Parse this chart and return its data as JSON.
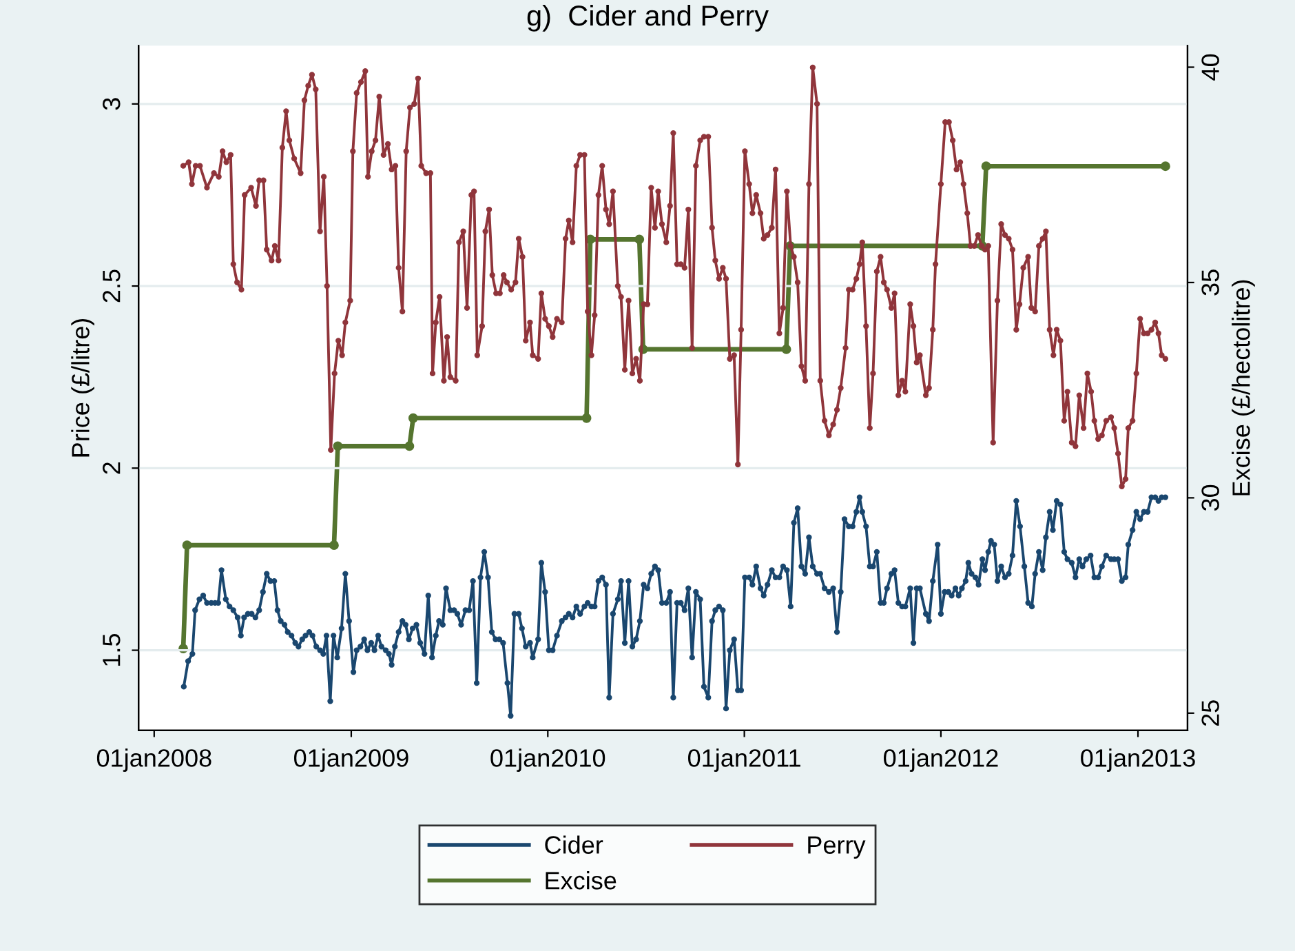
{
  "chart_data": {
    "type": "line",
    "title": "g)  Cider and Perry",
    "ylabel": "Price (£/litre)",
    "y2label": "Excise (£/hectolitre)",
    "xlim": [
      "2007-12-03",
      "2013-04-03"
    ],
    "xticks": [
      {
        "value": "2008-01-01",
        "label": "01jan2008"
      },
      {
        "value": "2009-01-01",
        "label": "01jan2009"
      },
      {
        "value": "2010-01-01",
        "label": "01jan2010"
      },
      {
        "value": "2011-01-01",
        "label": "01jan2011"
      },
      {
        "value": "2012-01-01",
        "label": "01jan2012"
      },
      {
        "value": "2013-01-01",
        "label": "01jan2013"
      }
    ],
    "ylim": [
      1.28,
      3.16
    ],
    "yticks": [
      1.5,
      2,
      2.5,
      3
    ],
    "y2lim": [
      24.6,
      40.5
    ],
    "y2ticks": [
      25,
      30,
      35,
      40
    ],
    "grid": "y",
    "legend": "bottom",
    "marker": "circle",
    "line_style": "solid",
    "series": [
      {
        "name": "Cider",
        "color": "#1a476f",
        "x": [
          "2008-02-25",
          "2008-03-04",
          "2008-03-12",
          "2008-03-17",
          "2008-03-25",
          "2008-04-01",
          "2008-04-08",
          "2008-04-16",
          "2008-04-23",
          "2008-04-29",
          "2008-05-05",
          "2008-05-13",
          "2008-05-20",
          "2008-05-27",
          "2008-06-04",
          "2008-06-10",
          "2008-06-16",
          "2008-06-23",
          "2008-06-30",
          "2008-07-07",
          "2008-07-14",
          "2008-07-21",
          "2008-07-28",
          "2008-08-04",
          "2008-08-11",
          "2008-08-17",
          "2008-08-23",
          "2008-08-30",
          "2008-09-05",
          "2008-09-12",
          "2008-09-19",
          "2008-09-25",
          "2008-10-02",
          "2008-10-08",
          "2008-10-15",
          "2008-10-21",
          "2008-10-28",
          "2008-11-04",
          "2008-11-10",
          "2008-11-16",
          "2008-11-23",
          "2008-11-29",
          "2008-12-06",
          "2008-12-14",
          "2008-12-21",
          "2008-12-28",
          "2009-01-05",
          "2009-01-11",
          "2009-01-18",
          "2009-01-25",
          "2009-01-31",
          "2009-02-07",
          "2009-02-13",
          "2009-02-20",
          "2009-02-26",
          "2009-03-06",
          "2009-03-12",
          "2009-03-17",
          "2009-03-23",
          "2009-03-30",
          "2009-04-06",
          "2009-04-12",
          "2009-04-18",
          "2009-04-25",
          "2009-05-02",
          "2009-05-09",
          "2009-05-17",
          "2009-05-24",
          "2009-05-31",
          "2009-06-07",
          "2009-06-13",
          "2009-06-20",
          "2009-06-26",
          "2009-07-04",
          "2009-07-11",
          "2009-07-17",
          "2009-07-24",
          "2009-08-01",
          "2009-08-08",
          "2009-08-15",
          "2009-08-22",
          "2009-08-29",
          "2009-09-05",
          "2009-09-12",
          "2009-09-19",
          "2009-09-26",
          "2009-10-03",
          "2009-10-10",
          "2009-10-18",
          "2009-10-24",
          "2009-10-31",
          "2009-11-08",
          "2009-11-14",
          "2009-11-21",
          "2009-11-29",
          "2009-12-04",
          "2009-12-14",
          "2009-12-20",
          "2009-12-27",
          "2010-01-03",
          "2010-01-10",
          "2010-01-18",
          "2010-01-27",
          "2010-02-03",
          "2010-02-09",
          "2010-02-16",
          "2010-02-23",
          "2010-03-02",
          "2010-03-10",
          "2010-03-16",
          "2010-03-23",
          "2010-03-29",
          "2010-04-05",
          "2010-04-12",
          "2010-04-19",
          "2010-04-25",
          "2010-05-02",
          "2010-05-11",
          "2010-05-17",
          "2010-05-24",
          "2010-05-31",
          "2010-06-07",
          "2010-06-14",
          "2010-06-21",
          "2010-06-28",
          "2010-07-05",
          "2010-07-12",
          "2010-07-19",
          "2010-07-25",
          "2010-08-01",
          "2010-08-09",
          "2010-08-16",
          "2010-08-22",
          "2010-08-29",
          "2010-09-05",
          "2010-09-12",
          "2010-09-19",
          "2010-09-26",
          "2010-10-03",
          "2010-10-11",
          "2010-10-18",
          "2010-10-26",
          "2010-11-02",
          "2010-11-08",
          "2010-11-15",
          "2010-11-22",
          "2010-11-28",
          "2010-12-05",
          "2010-12-13",
          "2010-12-20",
          "2010-12-26",
          "2011-01-02",
          "2011-01-10",
          "2011-01-16",
          "2011-01-23",
          "2011-01-31",
          "2011-02-06",
          "2011-02-13",
          "2011-02-21",
          "2011-02-28",
          "2011-03-07",
          "2011-03-14",
          "2011-03-21",
          "2011-03-28",
          "2011-04-03",
          "2011-04-10",
          "2011-04-17",
          "2011-04-24",
          "2011-05-01",
          "2011-05-08",
          "2011-05-16",
          "2011-05-22",
          "2011-05-30",
          "2011-06-07",
          "2011-06-15",
          "2011-06-22",
          "2011-06-29",
          "2011-07-06",
          "2011-07-14",
          "2011-07-21",
          "2011-07-28",
          "2011-08-03",
          "2011-08-08",
          "2011-08-15",
          "2011-08-22",
          "2011-08-28",
          "2011-09-04",
          "2011-09-11",
          "2011-09-17",
          "2011-09-23",
          "2011-10-01",
          "2011-10-07",
          "2011-10-14",
          "2011-10-21",
          "2011-10-27",
          "2011-11-05",
          "2011-11-11",
          "2011-11-17",
          "2011-11-23",
          "2011-12-04",
          "2011-12-10",
          "2011-12-17",
          "2011-12-26",
          "2012-01-01",
          "2012-01-08",
          "2012-01-15",
          "2012-01-21",
          "2012-01-28",
          "2012-02-03",
          "2012-02-09",
          "2012-02-16",
          "2012-02-21",
          "2012-02-27",
          "2012-03-05",
          "2012-03-11",
          "2012-03-18",
          "2012-03-23",
          "2012-03-29",
          "2012-04-03",
          "2012-04-09",
          "2012-04-15",
          "2012-04-22",
          "2012-04-29",
          "2012-05-06",
          "2012-05-13",
          "2012-05-20",
          "2012-05-27",
          "2012-06-04",
          "2012-06-11",
          "2012-06-18",
          "2012-06-24",
          "2012-07-01",
          "2012-07-08",
          "2012-07-14",
          "2012-07-21",
          "2012-07-27",
          "2012-08-03",
          "2012-08-10",
          "2012-08-17",
          "2012-08-23",
          "2012-08-31",
          "2012-09-07",
          "2012-09-14",
          "2012-09-20",
          "2012-09-27",
          "2012-10-05",
          "2012-10-12",
          "2012-10-19",
          "2012-10-26",
          "2012-11-03",
          "2012-11-12",
          "2012-11-18",
          "2012-11-25",
          "2012-12-02",
          "2012-12-09",
          "2012-12-14",
          "2012-12-22",
          "2012-12-29",
          "2013-01-05",
          "2013-01-12",
          "2013-01-19",
          "2013-01-26",
          "2013-02-02",
          "2013-02-08",
          "2013-02-14",
          "2013-02-21"
        ],
        "values": [
          1.4,
          1.47,
          1.49,
          1.61,
          1.64,
          1.65,
          1.63,
          1.63,
          1.63,
          1.63,
          1.72,
          1.64,
          1.62,
          1.61,
          1.59,
          1.54,
          1.59,
          1.6,
          1.6,
          1.59,
          1.61,
          1.66,
          1.71,
          1.69,
          1.69,
          1.61,
          1.58,
          1.57,
          1.55,
          1.54,
          1.52,
          1.51,
          1.53,
          1.54,
          1.55,
          1.54,
          1.51,
          1.5,
          1.49,
          1.54,
          1.36,
          1.54,
          1.48,
          1.56,
          1.71,
          1.58,
          1.44,
          1.5,
          1.51,
          1.53,
          1.5,
          1.52,
          1.5,
          1.54,
          1.51,
          1.5,
          1.49,
          1.46,
          1.51,
          1.55,
          1.58,
          1.57,
          1.53,
          1.56,
          1.57,
          1.52,
          1.49,
          1.65,
          1.48,
          1.54,
          1.58,
          1.57,
          1.67,
          1.61,
          1.61,
          1.6,
          1.57,
          1.61,
          1.61,
          1.69,
          1.41,
          1.7,
          1.77,
          1.7,
          1.55,
          1.53,
          1.53,
          1.52,
          1.41,
          1.32,
          1.6,
          1.6,
          1.56,
          1.51,
          1.52,
          1.48,
          1.53,
          1.74,
          1.66,
          1.5,
          1.5,
          1.54,
          1.58,
          1.59,
          1.6,
          1.59,
          1.62,
          1.6,
          1.62,
          1.63,
          1.62,
          1.62,
          1.69,
          1.7,
          1.68,
          1.37,
          1.6,
          1.64,
          1.69,
          1.52,
          1.69,
          1.51,
          1.53,
          1.58,
          1.68,
          1.67,
          1.71,
          1.73,
          1.72,
          1.63,
          1.63,
          1.66,
          1.37,
          1.63,
          1.63,
          1.61,
          1.67,
          1.48,
          1.66,
          1.64,
          1.4,
          1.37,
          1.58,
          1.61,
          1.62,
          1.61,
          1.34,
          1.5,
          1.53,
          1.39,
          1.39,
          1.7,
          1.7,
          1.68,
          1.73,
          1.67,
          1.65,
          1.68,
          1.72,
          1.7,
          1.7,
          1.73,
          1.72,
          1.62,
          1.85,
          1.89,
          1.73,
          1.71,
          1.81,
          1.73,
          1.71,
          1.71,
          1.67,
          1.66,
          1.67,
          1.55,
          1.66,
          1.86,
          1.84,
          1.84,
          1.88,
          1.92,
          1.88,
          1.84,
          1.73,
          1.73,
          1.77,
          1.63,
          1.63,
          1.67,
          1.71,
          1.72,
          1.63,
          1.62,
          1.62,
          1.67,
          1.52,
          1.67,
          1.67,
          1.6,
          1.58,
          1.69,
          1.79,
          1.6,
          1.66,
          1.66,
          1.65,
          1.67,
          1.65,
          1.67,
          1.69,
          1.74,
          1.71,
          1.7,
          1.68,
          1.75,
          1.72,
          1.77,
          1.8,
          1.79,
          1.69,
          1.73,
          1.7,
          1.71,
          1.76,
          1.91,
          1.84,
          1.73,
          1.63,
          1.62,
          1.71,
          1.77,
          1.72,
          1.81,
          1.88,
          1.83,
          1.91,
          1.9,
          1.77,
          1.75,
          1.74,
          1.7,
          1.75,
          1.73,
          1.75,
          1.76,
          1.7,
          1.7,
          1.73,
          1.76,
          1.75,
          1.75,
          1.75,
          1.69,
          1.7,
          1.79,
          1.83,
          1.88,
          1.86,
          1.88,
          1.88,
          1.92,
          1.92,
          1.91,
          1.92,
          1.92
        ]
      },
      {
        "name": "Perry",
        "color": "#90353b",
        "x": [
          "2008-02-24",
          "2008-03-05",
          "2008-03-11",
          "2008-03-18",
          "2008-03-26",
          "2008-04-08",
          "2008-04-21",
          "2008-04-30",
          "2008-05-07",
          "2008-05-14",
          "2008-05-22",
          "2008-05-27",
          "2008-06-03",
          "2008-06-11",
          "2008-06-17",
          "2008-06-29",
          "2008-07-08",
          "2008-07-14",
          "2008-07-22",
          "2008-07-28",
          "2008-08-06",
          "2008-08-12",
          "2008-08-19",
          "2008-08-26",
          "2008-09-02",
          "2008-09-08",
          "2008-09-17",
          "2008-09-29",
          "2008-10-06",
          "2008-10-13",
          "2008-10-20",
          "2008-10-27",
          "2008-11-04",
          "2008-11-11",
          "2008-11-17",
          "2008-11-24",
          "2008-12-01",
          "2008-12-08",
          "2008-12-15",
          "2008-12-21",
          "2008-12-30",
          "2009-01-04",
          "2009-01-11",
          "2009-01-19",
          "2009-01-27",
          "2009-02-01",
          "2009-02-08",
          "2009-02-15",
          "2009-02-22",
          "2009-03-02",
          "2009-03-10",
          "2009-03-17",
          "2009-03-24",
          "2009-03-30",
          "2009-04-06",
          "2009-04-13",
          "2009-04-20",
          "2009-04-28",
          "2009-05-05",
          "2009-05-11",
          "2009-05-20",
          "2009-05-28",
          "2009-06-01",
          "2009-06-07",
          "2009-06-14",
          "2009-06-22",
          "2009-06-28",
          "2009-07-04",
          "2009-07-14",
          "2009-07-20",
          "2009-07-28",
          "2009-08-04",
          "2009-08-12",
          "2009-08-17",
          "2009-08-23",
          "2009-09-01",
          "2009-09-07",
          "2009-09-14",
          "2009-09-20",
          "2009-09-27",
          "2009-10-04",
          "2009-10-11",
          "2009-10-17",
          "2009-10-25",
          "2009-11-02",
          "2009-11-08",
          "2009-11-15",
          "2009-11-21",
          "2009-11-29",
          "2009-12-04",
          "2009-12-14",
          "2009-12-20",
          "2009-12-27",
          "2010-01-03",
          "2010-01-10",
          "2010-01-18",
          "2010-01-27",
          "2010-02-03",
          "2010-02-09",
          "2010-02-16",
          "2010-02-23",
          "2010-03-02",
          "2010-03-10",
          "2010-03-16",
          "2010-03-23",
          "2010-03-29",
          "2010-04-05",
          "2010-04-12",
          "2010-04-19",
          "2010-04-25",
          "2010-05-02",
          "2010-05-11",
          "2010-05-17",
          "2010-05-24",
          "2010-05-31",
          "2010-06-07",
          "2010-06-14",
          "2010-06-21",
          "2010-06-28",
          "2010-07-05",
          "2010-07-12",
          "2010-07-19",
          "2010-07-25",
          "2010-08-01",
          "2010-08-09",
          "2010-08-16",
          "2010-08-22",
          "2010-08-29",
          "2010-09-05",
          "2010-09-12",
          "2010-09-19",
          "2010-09-26",
          "2010-10-03",
          "2010-10-11",
          "2010-10-18",
          "2010-10-26",
          "2010-11-02",
          "2010-11-08",
          "2010-11-15",
          "2010-11-22",
          "2010-11-28",
          "2010-12-05",
          "2010-12-13",
          "2010-12-20",
          "2010-12-26",
          "2011-01-02",
          "2011-01-10",
          "2011-01-16",
          "2011-01-23",
          "2011-01-31",
          "2011-02-06",
          "2011-02-13",
          "2011-02-21",
          "2011-02-28",
          "2011-03-07",
          "2011-03-14",
          "2011-03-21",
          "2011-03-28",
          "2011-04-03",
          "2011-04-10",
          "2011-04-17",
          "2011-04-24",
          "2011-05-01",
          "2011-05-08",
          "2011-05-16",
          "2011-05-22",
          "2011-05-30",
          "2011-06-07",
          "2011-06-15",
          "2011-06-22",
          "2011-06-29",
          "2011-07-08",
          "2011-07-14",
          "2011-07-21",
          "2011-07-28",
          "2011-08-03",
          "2011-08-08",
          "2011-08-15",
          "2011-08-22",
          "2011-08-28",
          "2011-09-04",
          "2011-09-11",
          "2011-09-17",
          "2011-09-23",
          "2011-10-01",
          "2011-10-07",
          "2011-10-14",
          "2011-10-21",
          "2011-10-27",
          "2011-11-05",
          "2011-11-11",
          "2011-11-17",
          "2011-11-23",
          "2011-12-04",
          "2011-12-10",
          "2011-12-17",
          "2011-12-22",
          "2012-01-01",
          "2012-01-09",
          "2012-01-16",
          "2012-01-23",
          "2012-01-30",
          "2012-02-06",
          "2012-02-12",
          "2012-02-19",
          "2012-02-25",
          "2012-03-03",
          "2012-03-10",
          "2012-03-17",
          "2012-03-23",
          "2012-03-29",
          "2012-04-07",
          "2012-04-15",
          "2012-04-22",
          "2012-04-29",
          "2012-05-06",
          "2012-05-13",
          "2012-05-20",
          "2012-05-26",
          "2012-06-02",
          "2012-06-11",
          "2012-06-17",
          "2012-06-24",
          "2012-07-01",
          "2012-07-08",
          "2012-07-14",
          "2012-07-21",
          "2012-07-28",
          "2012-08-03",
          "2012-08-10",
          "2012-08-17",
          "2012-08-23",
          "2012-08-31",
          "2012-09-07",
          "2012-09-14",
          "2012-09-22",
          "2012-09-29",
          "2012-10-06",
          "2012-10-12",
          "2012-10-19",
          "2012-10-26",
          "2012-11-03",
          "2012-11-12",
          "2012-11-18",
          "2012-11-25",
          "2012-12-02",
          "2012-12-09",
          "2012-12-14",
          "2012-12-22",
          "2012-12-29",
          "2013-01-05",
          "2013-01-12",
          "2013-01-19",
          "2013-01-26",
          "2013-02-02",
          "2013-02-08",
          "2013-02-14",
          "2013-02-21"
        ],
        "values": [
          2.83,
          2.84,
          2.78,
          2.83,
          2.83,
          2.77,
          2.81,
          2.8,
          2.87,
          2.84,
          2.86,
          2.56,
          2.51,
          2.49,
          2.75,
          2.77,
          2.72,
          2.79,
          2.79,
          2.6,
          2.57,
          2.61,
          2.57,
          2.88,
          2.98,
          2.9,
          2.85,
          2.81,
          3.01,
          3.05,
          3.08,
          3.04,
          2.65,
          2.8,
          2.5,
          2.05,
          2.26,
          2.35,
          2.31,
          2.4,
          2.46,
          2.87,
          3.03,
          3.06,
          3.09,
          2.8,
          2.87,
          2.9,
          3.02,
          2.86,
          2.89,
          2.82,
          2.83,
          2.55,
          2.43,
          2.87,
          2.99,
          3.0,
          3.07,
          2.83,
          2.81,
          2.81,
          2.26,
          2.4,
          2.47,
          2.24,
          2.36,
          2.25,
          2.24,
          2.62,
          2.65,
          2.44,
          2.75,
          2.76,
          2.31,
          2.39,
          2.65,
          2.71,
          2.53,
          2.48,
          2.48,
          2.53,
          2.51,
          2.49,
          2.51,
          2.63,
          2.58,
          2.35,
          2.4,
          2.31,
          2.3,
          2.48,
          2.41,
          2.39,
          2.36,
          2.41,
          2.4,
          2.63,
          2.68,
          2.62,
          2.83,
          2.86,
          2.86,
          2.43,
          2.31,
          2.42,
          2.75,
          2.83,
          2.71,
          2.67,
          2.76,
          2.5,
          2.47,
          2.27,
          2.46,
          2.26,
          2.3,
          2.24,
          2.45,
          2.45,
          2.77,
          2.66,
          2.76,
          2.67,
          2.62,
          2.72,
          2.92,
          2.56,
          2.56,
          2.55,
          2.71,
          2.33,
          2.83,
          2.9,
          2.91,
          2.91,
          2.66,
          2.57,
          2.52,
          2.55,
          2.52,
          2.3,
          2.31,
          2.01,
          2.38,
          2.87,
          2.78,
          2.7,
          2.75,
          2.7,
          2.63,
          2.64,
          2.66,
          2.82,
          2.37,
          2.44,
          2.76,
          2.61,
          2.58,
          2.51,
          2.28,
          2.24,
          2.78,
          3.1,
          3.0,
          2.24,
          2.13,
          2.09,
          2.12,
          2.16,
          2.22,
          2.33,
          2.49,
          2.49,
          2.52,
          2.56,
          2.62,
          2.39,
          2.11,
          2.26,
          2.54,
          2.58,
          2.51,
          2.49,
          2.44,
          2.48,
          2.2,
          2.24,
          2.21,
          2.45,
          2.39,
          2.29,
          2.31,
          2.2,
          2.22,
          2.38,
          2.56,
          2.78,
          2.95,
          2.95,
          2.9,
          2.82,
          2.84,
          2.78,
          2.7,
          2.61,
          2.61,
          2.64,
          2.61,
          2.6,
          2.61,
          2.07,
          2.46,
          2.67,
          2.64,
          2.63,
          2.6,
          2.38,
          2.45,
          2.55,
          2.58,
          2.44,
          2.43,
          2.61,
          2.63,
          2.65,
          2.38,
          2.31,
          2.38,
          2.35,
          2.13,
          2.21,
          2.07,
          2.06,
          2.2,
          2.11,
          2.26,
          2.21,
          2.13,
          2.08,
          2.09,
          2.13,
          2.14,
          2.11,
          2.04,
          1.95,
          1.97,
          2.11,
          2.13,
          2.26,
          2.41,
          2.37,
          2.37,
          2.38,
          2.4,
          2.37,
          2.31,
          2.3
        ]
      },
      {
        "name": "Excise",
        "color": "#55752f",
        "axis": "y2",
        "x": [
          "2008-02-24",
          "2008-03-02",
          "2008-11-30",
          "2008-12-07",
          "2009-04-19",
          "2009-04-26",
          "2010-03-14",
          "2010-03-21",
          "2010-06-20",
          "2010-06-27",
          "2011-03-20",
          "2011-03-27",
          "2012-03-18",
          "2012-03-25",
          "2013-02-21"
        ],
        "values": [
          26.5,
          28.9,
          28.9,
          31.2,
          31.2,
          31.85,
          31.85,
          36.0,
          36.0,
          33.45,
          33.45,
          35.85,
          35.85,
          37.7,
          37.7
        ]
      }
    ]
  }
}
